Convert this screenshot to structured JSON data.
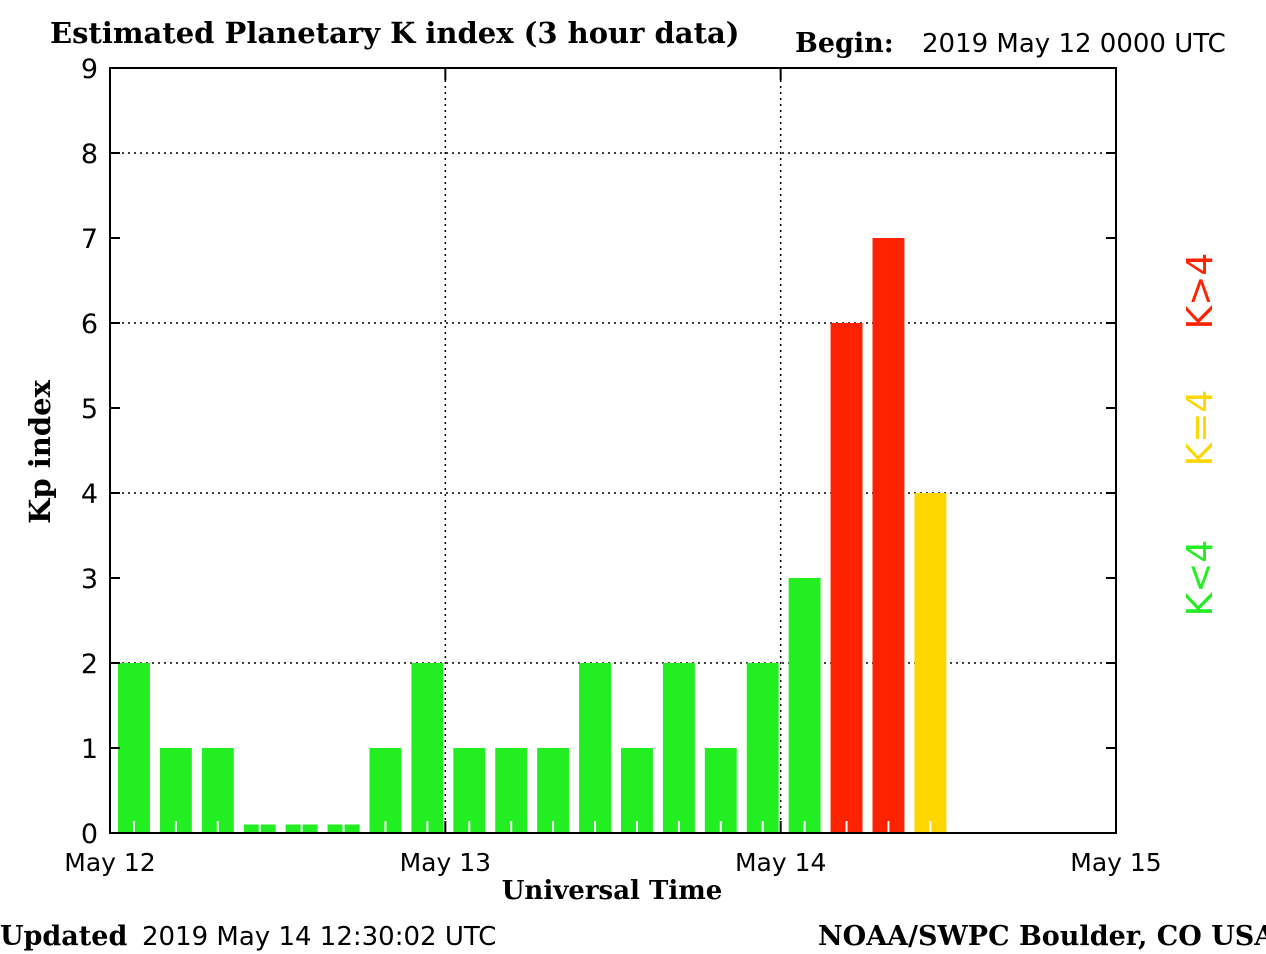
{
  "chart_data": {
    "type": "bar",
    "title": "Estimated Planetary K index (3 hour data)",
    "begin_label": "Begin:",
    "begin_value": "2019 May 12 0000 UTC",
    "xlabel": "Universal Time",
    "ylabel": "Kp index",
    "ylim": [
      0,
      9
    ],
    "yticks": [
      "0",
      "1",
      "2",
      "3",
      "4",
      "5",
      "6",
      "7",
      "8",
      "9"
    ],
    "xticks": [
      "May 12",
      "May 13",
      "May 14",
      "May 15"
    ],
    "grid": "dotted",
    "bar_interval_hours": 3,
    "values": [
      2,
      1,
      1,
      0.1,
      0.1,
      0.1,
      1,
      2,
      1,
      1,
      1,
      2,
      1,
      2,
      1,
      2,
      3,
      6,
      7,
      4
    ],
    "legend": [
      {
        "label": "K<4",
        "color": "#22ee22"
      },
      {
        "label": "K=4",
        "color": "#ffd700"
      },
      {
        "label": "K>4",
        "color": "#ff2200"
      }
    ],
    "colors": {
      "low": "#22ee22",
      "equal": "#ffd700",
      "high": "#ff2200"
    }
  },
  "footer": {
    "updated_label": "Updated",
    "updated_value": "2019 May 14 12:30:02 UTC",
    "source": "NOAA/SWPC Boulder, CO USA"
  }
}
